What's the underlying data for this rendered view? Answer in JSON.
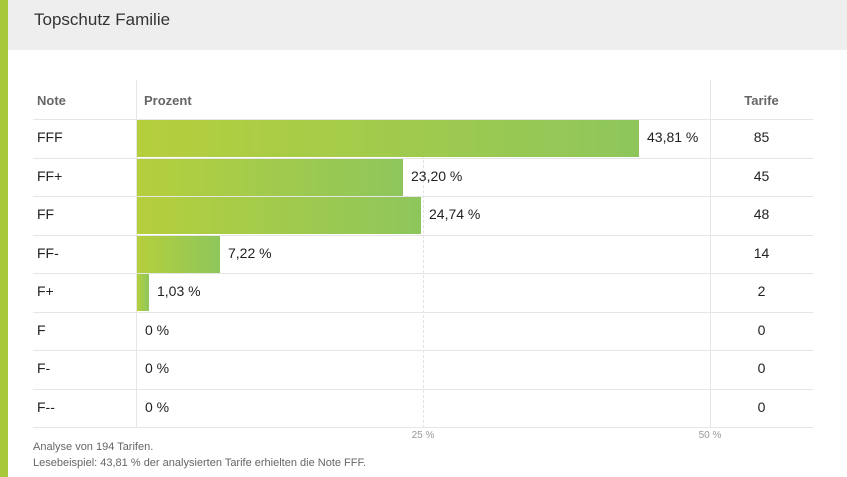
{
  "header": {
    "title": "Topschutz Familie"
  },
  "table": {
    "col_note": "Note",
    "col_prozent": "Prozent",
    "col_tarife": "Tarife"
  },
  "chart_data": {
    "type": "bar",
    "orientation": "horizontal",
    "xlim": [
      0,
      50
    ],
    "grid": true,
    "x_ticks": [
      "25 %",
      "50 %"
    ],
    "rows": [
      {
        "note": "FFF",
        "percent": 43.81,
        "percent_label": "43,81 %",
        "tarife": "85"
      },
      {
        "note": "FF+",
        "percent": 23.2,
        "percent_label": "23,20 %",
        "tarife": "45"
      },
      {
        "note": "FF",
        "percent": 24.74,
        "percent_label": "24,74 %",
        "tarife": "48"
      },
      {
        "note": "FF-",
        "percent": 7.22,
        "percent_label": "7,22 %",
        "tarife": "14"
      },
      {
        "note": "F+",
        "percent": 1.03,
        "percent_label": "1,03 %",
        "tarife": "2"
      },
      {
        "note": "F",
        "percent": 0,
        "percent_label": "0 %",
        "tarife": "0"
      },
      {
        "note": "F-",
        "percent": 0,
        "percent_label": "0 %",
        "tarife": "0"
      },
      {
        "note": "F--",
        "percent": 0,
        "percent_label": "0 %",
        "tarife": "0"
      }
    ],
    "bar_gradient": [
      "#b5cf3c",
      "#8ec65c"
    ]
  },
  "footer": {
    "line1": "Analyse von 194 Tarifen.",
    "line2": "Lesebeispiel: 43,81 % der analysierten Tarife erhielten die Note FFF."
  }
}
